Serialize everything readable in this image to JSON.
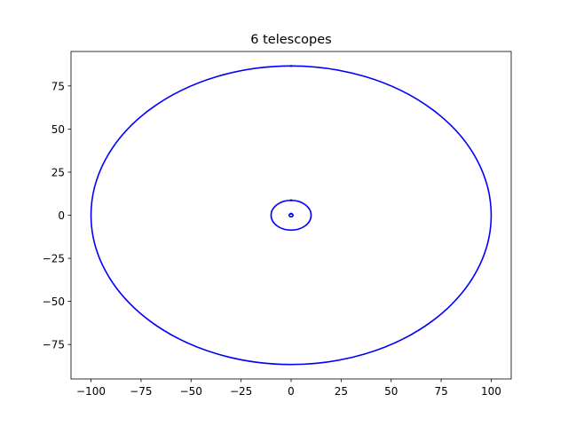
{
  "chart_data": {
    "type": "line",
    "title": "6 telescopes",
    "xlabel": "",
    "ylabel": "",
    "xlim": [
      -110,
      110
    ],
    "ylim": [
      -95,
      95
    ],
    "xticks": [
      -100,
      -75,
      -50,
      -25,
      0,
      25,
      50,
      75,
      100
    ],
    "yticks": [
      -75,
      -50,
      -25,
      0,
      25,
      50,
      75
    ],
    "xtick_labels": [
      "−100",
      "−75",
      "−50",
      "−25",
      "0",
      "25",
      "50",
      "75",
      "100"
    ],
    "ytick_labels": [
      "−75",
      "−50",
      "−25",
      "0",
      "25",
      "50",
      "75"
    ],
    "grid": false,
    "color": "#0000ff",
    "series": [
      {
        "shape": "ellipse",
        "center": [
          0,
          0
        ],
        "rx": 100,
        "ry": 86.6
      },
      {
        "shape": "ellipse",
        "center": [
          0,
          0
        ],
        "rx": 10,
        "ry": 8.66
      },
      {
        "shape": "ellipse",
        "center": [
          0,
          0
        ],
        "rx": 1,
        "ry": 0.87
      }
    ]
  }
}
